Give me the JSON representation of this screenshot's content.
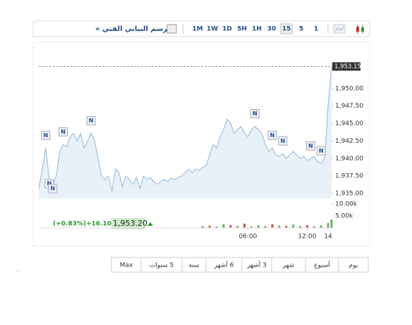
{
  "chart_data": {
    "type": "area",
    "title": "الرسم البياني الفني »",
    "timeframes": [
      "1M",
      "1W",
      "1D",
      "5H",
      "1H",
      "30",
      "15",
      "5",
      "1"
    ],
    "selected_timeframe": 6,
    "series": [
      {
        "color": "#8fb8da",
        "fill": "#e8f0f8",
        "values": [
          1935.7,
          1938.5,
          1941.5,
          1937.0,
          1936.3,
          1937.5,
          1941.0,
          1942.0,
          1941.7,
          1943.1,
          1943.6,
          1942.5,
          1943.6,
          1941.5,
          1942.5,
          1943.6,
          1942.5,
          1940.0,
          1937.5,
          1937.0,
          1937.5,
          1935.3,
          1938.5,
          1938.0,
          1936.0,
          1937.5,
          1937.0,
          1936.3,
          1937.3,
          1935.7,
          1937.5,
          1937.0,
          1937.3,
          1936.7,
          1936.3,
          1936.7,
          1937.0,
          1936.7,
          1937.2,
          1937.0,
          1937.3,
          1937.5,
          1938.0,
          1938.5,
          1938.0,
          1938.5,
          1938.3,
          1938.7,
          1939.0,
          1940.5,
          1942.0,
          1941.5,
          1943.1,
          1944.1,
          1945.6,
          1945.1,
          1943.6,
          1944.1,
          1944.6,
          1943.6,
          1943.1,
          1944.1,
          1944.6,
          1944.1,
          1943.6,
          1942.0,
          1941.0,
          1941.5,
          1940.5,
          1940.3,
          1940.7,
          1940.0,
          1940.5,
          1941.0,
          1940.5,
          1940.0,
          1940.3,
          1939.7,
          1940.0,
          1940.3,
          1939.5,
          1939.3,
          1940.0,
          1947.6,
          1953.15
        ]
      }
    ],
    "xlim": [
      0,
      84
    ],
    "xticks": [
      {
        "value": 60,
        "label": "06:00"
      },
      {
        "value": 77,
        "label": "12:00"
      },
      {
        "value": 83,
        "label": "14"
      }
    ],
    "ylim": [
      1934.3,
      1953.6
    ],
    "yticks": [
      {
        "value": 1935,
        "label": "1,935.00"
      },
      {
        "value": 1937.5,
        "label": "1,937.50"
      },
      {
        "value": 1940,
        "label": "1,940.00"
      },
      {
        "value": 1942.5,
        "label": "1,942.50"
      },
      {
        "value": 1945,
        "label": "1,945.00"
      },
      {
        "value": 1947.5,
        "label": "1,947.50"
      },
      {
        "value": 1950,
        "label": "1,950.00"
      }
    ],
    "last_price": {
      "value": 1953.15,
      "label": "1,953.15"
    },
    "news": {
      "label": "N",
      "x": [
        2,
        7,
        15,
        3,
        4,
        62,
        67,
        70,
        78,
        81
      ]
    },
    "volume": {
      "x": [
        47,
        49,
        51,
        53,
        55,
        57,
        59,
        61,
        63,
        65,
        67,
        69,
        71,
        73,
        75,
        77,
        79,
        81,
        83,
        84
      ],
      "values": [
        0.8,
        1.0,
        0.6,
        1.5,
        1.2,
        0.9,
        1.8,
        0.7,
        1.1,
        0.8,
        1.6,
        1.0,
        0.9,
        1.4,
        0.8,
        1.2,
        0.7,
        1.0,
        2.0,
        3.5
      ],
      "colors": [
        "#999",
        "#d9534f",
        "#999",
        "#5cb85c",
        "#d9534f",
        "#999",
        "#d9534f",
        "#999",
        "#5cb85c",
        "#999",
        "#d9534f",
        "#999",
        "#d9534f",
        "#5cb85c",
        "#999",
        "#d9534f",
        "#999",
        "#5cb85c",
        "#999",
        "#5cb85c"
      ],
      "ylim": [
        0,
        10.3
      ],
      "yticks": [
        {
          "value": 5,
          "label": "5.00k"
        },
        {
          "value": 10,
          "label": "10.00k"
        }
      ]
    },
    "quote": {
      "change_pct": "(+0.83%)",
      "change": "+16.10",
      "price": "1,953.20"
    },
    "ranges": [
      "يوم",
      "أسبوع",
      "شهر",
      "3 أشهر",
      "6 أشهر",
      "سنة",
      "5 سنوات",
      "Max"
    ]
  }
}
